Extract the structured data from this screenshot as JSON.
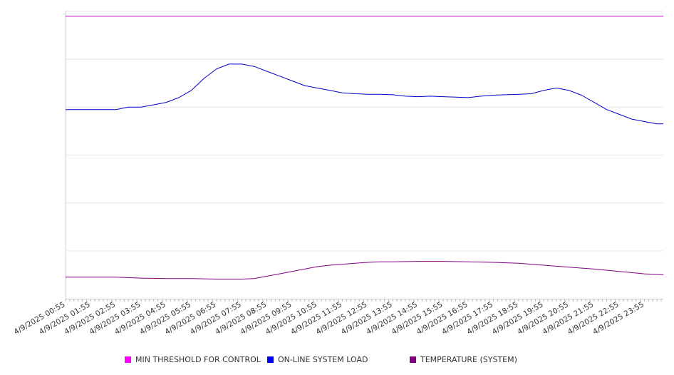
{
  "chart_data": {
    "type": "line",
    "title": "",
    "xlabel": "",
    "ylabel": "",
    "grid": true,
    "legend_position": "bottom",
    "x_labels": [
      "4/9/2025 00:55",
      "4/9/2025 01:55",
      "4/9/2025 02:55",
      "4/9/2025 03:55",
      "4/9/2025 04:55",
      "4/9/2025 05:55",
      "4/9/2025 06:55",
      "4/9/2025 07:55",
      "4/9/2025 08:55",
      "4/9/2025 09:55",
      "4/9/2025 10:55",
      "4/9/2025 11:55",
      "4/9/2025 12:55",
      "4/9/2025 13:55",
      "4/9/2025 14:55",
      "4/9/2025 15:55",
      "4/9/2025 16:55",
      "4/9/2025 17:55",
      "4/9/2025 18:55",
      "4/9/2025 19:55",
      "4/9/2025 20:55",
      "4/9/2025 21:55",
      "4/9/2025 22:55",
      "4/9/2025 23:55"
    ],
    "x_range_hours": [
      0,
      23.75
    ],
    "y_range": [
      0,
      6
    ],
    "series": [
      {
        "name": "MIN THRESHOLD FOR CONTROL",
        "color": "#cc00cc",
        "x_hours": [
          0,
          23.75
        ],
        "values": [
          5.9,
          5.9
        ]
      },
      {
        "name": "ON-LINE SYSTEM LOAD",
        "color": "#0000cc",
        "x_hours": [
          0,
          0.5,
          1,
          1.5,
          2,
          2.5,
          3,
          3.5,
          4,
          4.5,
          5,
          5.5,
          6,
          6.5,
          7,
          7.5,
          8,
          8.5,
          9,
          9.5,
          10,
          10.5,
          11,
          11.5,
          12,
          12.5,
          13,
          13.5,
          14,
          14.5,
          15,
          15.5,
          16,
          16.5,
          17,
          17.5,
          18,
          18.5,
          19,
          19.5,
          20,
          20.5,
          21,
          21.5,
          22,
          22.5,
          23,
          23.5,
          23.75
        ],
        "values": [
          3.95,
          3.95,
          3.95,
          3.95,
          3.95,
          4.0,
          4.0,
          4.05,
          4.1,
          4.2,
          4.35,
          4.6,
          4.8,
          4.9,
          4.9,
          4.85,
          4.75,
          4.65,
          4.55,
          4.45,
          4.4,
          4.35,
          4.3,
          4.28,
          4.27,
          4.27,
          4.26,
          4.23,
          4.22,
          4.23,
          4.22,
          4.21,
          4.2,
          4.23,
          4.25,
          4.26,
          4.27,
          4.28,
          4.35,
          4.4,
          4.35,
          4.25,
          4.1,
          3.95,
          3.85,
          3.75,
          3.7,
          3.65,
          3.65
        ]
      },
      {
        "name": "TEMPERATURE (SYSTEM)",
        "color": "#800080",
        "x_hours": [
          0,
          1,
          2,
          3,
          4,
          5,
          6,
          7,
          7.5,
          8,
          8.5,
          9,
          9.5,
          10,
          10.5,
          11,
          11.5,
          12,
          12.5,
          13,
          14,
          15,
          16,
          17,
          18,
          19,
          20,
          21,
          22,
          23,
          23.75
        ],
        "values": [
          0.45,
          0.45,
          0.45,
          0.43,
          0.42,
          0.42,
          0.41,
          0.41,
          0.42,
          0.47,
          0.52,
          0.57,
          0.62,
          0.67,
          0.7,
          0.72,
          0.74,
          0.76,
          0.77,
          0.77,
          0.78,
          0.78,
          0.77,
          0.76,
          0.74,
          0.7,
          0.66,
          0.62,
          0.57,
          0.52,
          0.5
        ]
      }
    ]
  }
}
